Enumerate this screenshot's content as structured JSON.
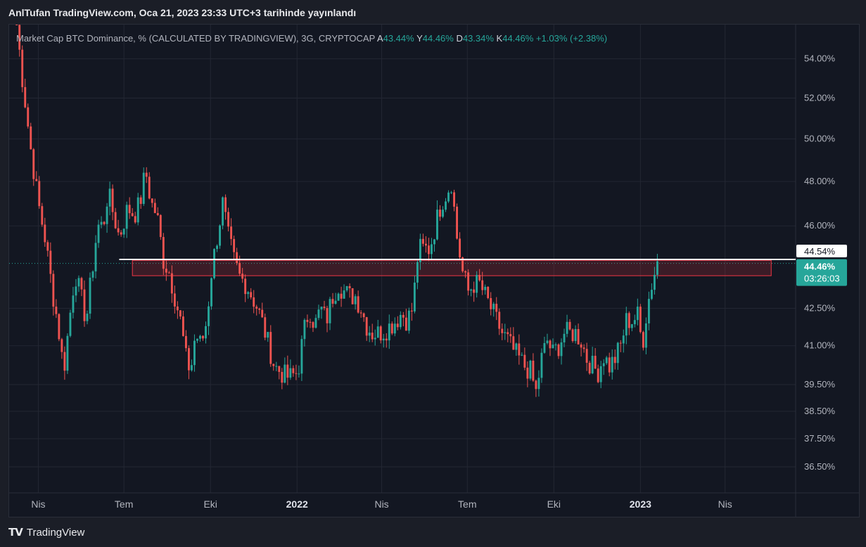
{
  "header": {
    "title": "AnlTufan TradingView.com, Oca 21, 2023 23:33 UTC+3 tarihinde yayınlandı"
  },
  "footer": {
    "brand": "TradingView",
    "logo_icon": "tradingview-logo-icon"
  },
  "legend": {
    "symbol": "Market Cap BTC Dominance, % (CALCULATED BY TRADINGVIEW), 3G, CRYPTOCAP",
    "ohlc": [
      {
        "key": "A",
        "value": "43.44%"
      },
      {
        "key": "Y",
        "value": "44.46%"
      },
      {
        "key": "D",
        "value": "43.34%"
      },
      {
        "key": "K",
        "value": "44.46%"
      }
    ],
    "change": "+1.03% (+2.38%)"
  },
  "colors": {
    "background": "#131722",
    "up": "#26a69a",
    "down": "#ef5350",
    "grid": "#232733",
    "axis_text": "#b2b5be",
    "hline": "#ffffff",
    "zone": "#f23645"
  },
  "chart_data": {
    "type": "candlestick",
    "title": "Market Cap BTC Dominance, % (CALCULATED BY TRADINGVIEW), 3G, CRYPTOCAP",
    "y_scale": "log",
    "ylim": [
      35.6,
      55.8
    ],
    "y_ticks": [
      "54.00%",
      "52.00%",
      "50.00%",
      "48.00%",
      "46.00%",
      "42.50%",
      "41.00%",
      "39.50%",
      "38.50%",
      "37.50%",
      "36.50%"
    ],
    "y_tick_values": [
      54.0,
      52.0,
      50.0,
      48.0,
      46.0,
      42.5,
      41.0,
      39.5,
      38.5,
      37.5,
      36.5
    ],
    "x_ticks": [
      "Nis",
      "Tem",
      "Eki",
      "2022",
      "Nis",
      "Tem",
      "Eki",
      "2023",
      "Nis"
    ],
    "x_tick_dates": [
      "2021-04-01",
      "2021-07-01",
      "2021-10-01",
      "2022-01-01",
      "2022-04-01",
      "2022-07-01",
      "2022-10-01",
      "2023-01-01",
      "2023-04-01"
    ],
    "x_tick_bold": [
      false,
      false,
      false,
      true,
      false,
      false,
      false,
      true,
      false
    ],
    "x_range": [
      "2021-03-01",
      "2023-06-15"
    ],
    "candle_period_days": 3,
    "keypoints": [
      [
        "2021-03-09",
        55.8
      ],
      [
        "2021-03-15",
        53.0
      ],
      [
        "2021-03-24",
        49.5
      ],
      [
        "2021-04-01",
        47.0
      ],
      [
        "2021-04-08",
        45.5
      ],
      [
        "2021-04-16",
        43.2
      ],
      [
        "2021-04-22",
        41.8
      ],
      [
        "2021-04-28",
        40.0
      ],
      [
        "2021-05-04",
        42.0
      ],
      [
        "2021-05-10",
        44.0
      ],
      [
        "2021-05-16",
        43.0
      ],
      [
        "2021-05-22",
        42.0
      ],
      [
        "2021-05-28",
        44.0
      ],
      [
        "2021-06-03",
        46.0
      ],
      [
        "2021-06-09",
        46.0
      ],
      [
        "2021-06-14",
        47.5
      ],
      [
        "2021-06-20",
        46.5
      ],
      [
        "2021-06-26",
        45.5
      ],
      [
        "2021-07-05",
        46.8
      ],
      [
        "2021-07-12",
        46.5
      ],
      [
        "2021-07-18",
        47.0
      ],
      [
        "2021-07-24",
        48.5
      ],
      [
        "2021-07-30",
        47.0
      ],
      [
        "2021-08-05",
        46.5
      ],
      [
        "2021-08-12",
        44.5
      ],
      [
        "2021-08-18",
        44.0
      ],
      [
        "2021-08-24",
        43.0
      ],
      [
        "2021-08-30",
        42.0
      ],
      [
        "2021-09-05",
        40.5
      ],
      [
        "2021-09-10",
        40.0
      ],
      [
        "2021-09-15",
        41.5
      ],
      [
        "2021-09-21",
        41.0
      ],
      [
        "2021-09-27",
        42.0
      ],
      [
        "2021-10-02",
        44.0
      ],
      [
        "2021-10-08",
        45.5
      ],
      [
        "2021-10-14",
        47.0
      ],
      [
        "2021-10-20",
        45.5
      ],
      [
        "2021-10-26",
        44.5
      ],
      [
        "2021-11-01",
        43.8
      ],
      [
        "2021-11-08",
        43.5
      ],
      [
        "2021-11-14",
        43.0
      ],
      [
        "2021-11-20",
        42.5
      ],
      [
        "2021-11-26",
        41.8
      ],
      [
        "2021-12-02",
        41.0
      ],
      [
        "2021-12-08",
        40.2
      ],
      [
        "2021-12-14",
        40.0
      ],
      [
        "2021-12-20",
        39.8
      ],
      [
        "2021-12-26",
        39.8
      ],
      [
        "2022-01-02",
        40.0
      ],
      [
        "2022-01-08",
        41.5
      ],
      [
        "2022-01-14",
        42.5
      ],
      [
        "2022-01-20",
        41.8
      ],
      [
        "2022-01-26",
        42.5
      ],
      [
        "2022-02-01",
        42.0
      ],
      [
        "2022-02-08",
        43.0
      ],
      [
        "2022-02-14",
        43.5
      ],
      [
        "2022-02-20",
        43.2
      ],
      [
        "2022-02-26",
        43.0
      ],
      [
        "2022-03-04",
        43.0
      ],
      [
        "2022-03-10",
        42.5
      ],
      [
        "2022-03-16",
        41.8
      ],
      [
        "2022-03-22",
        41.5
      ],
      [
        "2022-03-28",
        41.5
      ],
      [
        "2022-04-04",
        41.6
      ],
      [
        "2022-04-10",
        41.8
      ],
      [
        "2022-04-16",
        42.0
      ],
      [
        "2022-04-22",
        42.3
      ],
      [
        "2022-04-28",
        42.0
      ],
      [
        "2022-05-04",
        42.5
      ],
      [
        "2022-05-10",
        45.0
      ],
      [
        "2022-05-16",
        45.0
      ],
      [
        "2022-05-22",
        45.0
      ],
      [
        "2022-05-28",
        46.0
      ],
      [
        "2022-06-03",
        47.0
      ],
      [
        "2022-06-09",
        47.5
      ],
      [
        "2022-06-14",
        48.0
      ],
      [
        "2022-06-20",
        45.5
      ],
      [
        "2022-06-26",
        44.0
      ],
      [
        "2022-07-02",
        43.2
      ],
      [
        "2022-07-08",
        43.5
      ],
      [
        "2022-07-14",
        43.5
      ],
      [
        "2022-07-20",
        43.0
      ],
      [
        "2022-07-26",
        42.5
      ],
      [
        "2022-08-01",
        42.0
      ],
      [
        "2022-08-07",
        41.5
      ],
      [
        "2022-08-13",
        41.2
      ],
      [
        "2022-08-19",
        40.8
      ],
      [
        "2022-08-25",
        40.5
      ],
      [
        "2022-08-31",
        40.2
      ],
      [
        "2022-09-06",
        40.0
      ],
      [
        "2022-09-12",
        39.2
      ],
      [
        "2022-09-18",
        40.5
      ],
      [
        "2022-09-24",
        41.2
      ],
      [
        "2022-09-30",
        40.7
      ],
      [
        "2022-10-06",
        41.0
      ],
      [
        "2022-10-12",
        41.5
      ],
      [
        "2022-10-18",
        41.5
      ],
      [
        "2022-10-24",
        41.5
      ],
      [
        "2022-10-30",
        41.2
      ],
      [
        "2022-11-05",
        40.5
      ],
      [
        "2022-11-11",
        40.2
      ],
      [
        "2022-11-17",
        40.0
      ],
      [
        "2022-11-23",
        40.6
      ],
      [
        "2022-11-29",
        40.2
      ],
      [
        "2022-12-05",
        40.5
      ],
      [
        "2022-12-11",
        41.0
      ],
      [
        "2022-12-17",
        42.0
      ],
      [
        "2022-12-23",
        42.0
      ],
      [
        "2022-12-29",
        42.2
      ],
      [
        "2023-01-03",
        41.0
      ],
      [
        "2023-01-08",
        42.5
      ],
      [
        "2023-01-13",
        43.5
      ],
      [
        "2023-01-19",
        44.46
      ]
    ],
    "annotations": {
      "horizontal_line": {
        "value": 44.54,
        "label": "44.54%",
        "start": "2021-06-26"
      },
      "resistance_zone": {
        "top": 44.5,
        "bottom": 43.85,
        "start": "2021-07-10",
        "end": "2023-05-20"
      },
      "last_price": {
        "value": 44.46,
        "label": "44.46%",
        "countdown": "03:26:03"
      }
    }
  }
}
